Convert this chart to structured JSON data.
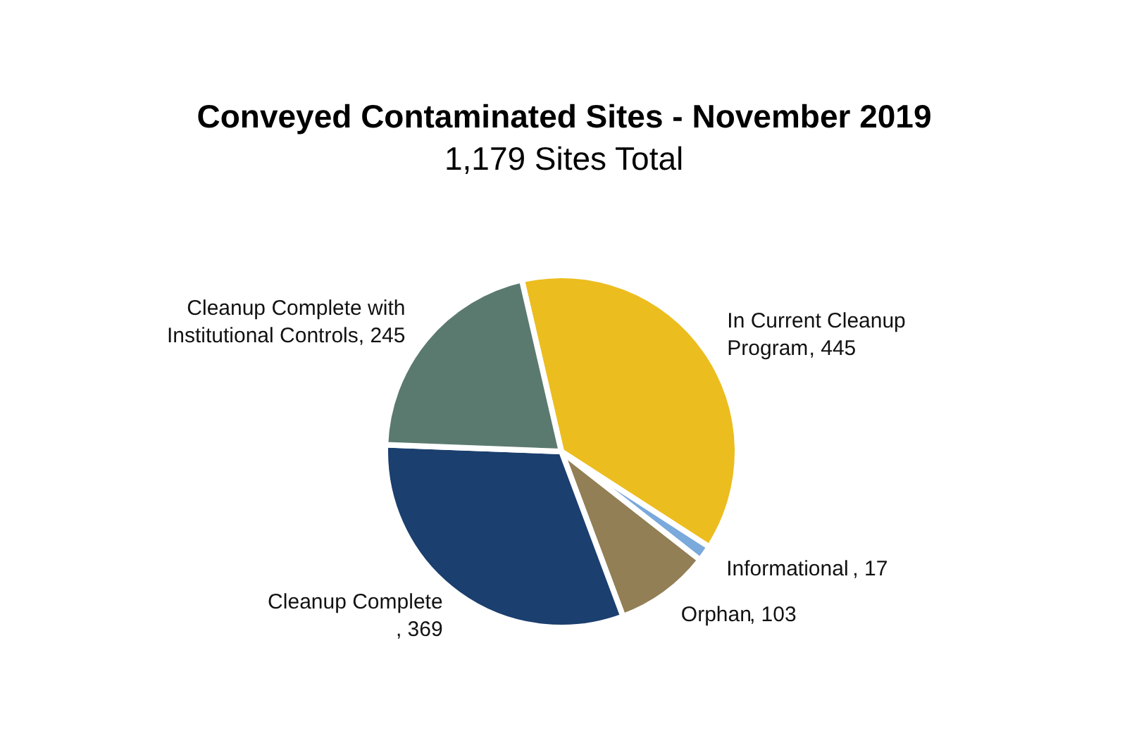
{
  "chart_data": {
    "type": "pie",
    "title": "Conveyed Contaminated Sites - November 2019",
    "subtitle": "1,179 Sites Total",
    "categories": [
      "In Current Cleanup Program",
      "Informational",
      "Orphan",
      "Cleanup Complete",
      "Cleanup Complete with Institutional Controls"
    ],
    "values": [
      445,
      17,
      103,
      369,
      245
    ],
    "colors": [
      "#ecbd1f",
      "#7aa9dc",
      "#927f55",
      "#1b3f6e",
      "#5a7a70"
    ],
    "value_labels": [
      ", 445",
      ", 17",
      ", 103",
      ", 369",
      ", 245"
    ]
  }
}
